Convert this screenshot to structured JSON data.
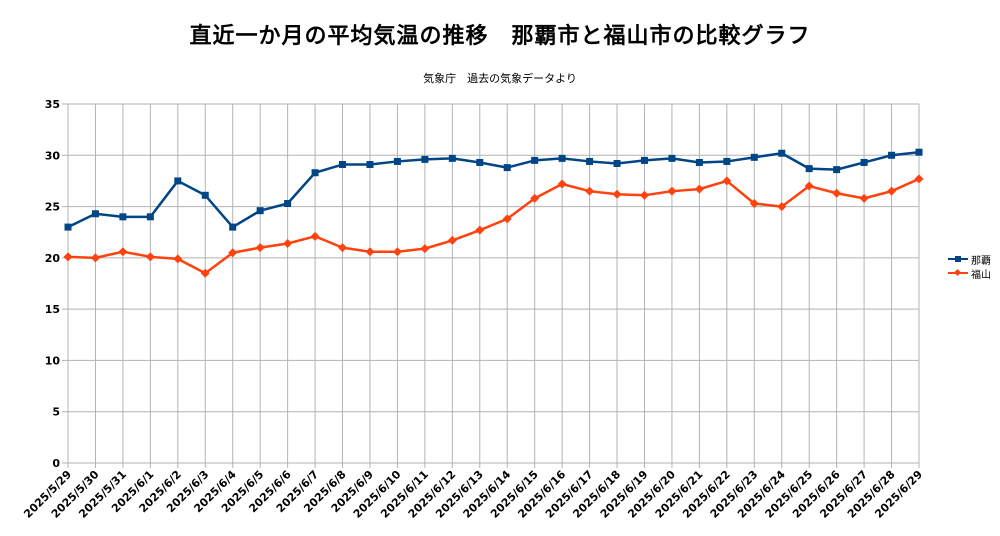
{
  "chart_data": {
    "type": "line",
    "title": "直近一か月の平均気温の推移　那覇市と福山市の比較グラフ",
    "subtitle": "気象庁　過去の気象データより",
    "xlabel": "",
    "ylabel": "",
    "ylim": [
      0,
      35
    ],
    "yticks": [
      0,
      5,
      10,
      15,
      20,
      25,
      30,
      35
    ],
    "grid": true,
    "legend_position": "right",
    "categories": [
      "2025/5/29",
      "2025/5/30",
      "2025/5/31",
      "2025/6/1",
      "2025/6/2",
      "2025/6/3",
      "2025/6/4",
      "2025/6/5",
      "2025/6/6",
      "2025/6/7",
      "2025/6/8",
      "2025/6/9",
      "2025/6/10",
      "2025/6/11",
      "2025/6/12",
      "2025/6/13",
      "2025/6/14",
      "2025/6/15",
      "2025/6/16",
      "2025/6/17",
      "2025/6/18",
      "2025/6/19",
      "2025/6/20",
      "2025/6/21",
      "2025/6/22",
      "2025/6/23",
      "2025/6/24",
      "2025/6/25",
      "2025/6/26",
      "2025/6/27",
      "2025/6/28",
      "2025/6/29"
    ],
    "series": [
      {
        "name": "那覇",
        "color": "#004586",
        "marker": "square",
        "values": [
          23.0,
          24.3,
          24.0,
          24.0,
          27.5,
          26.1,
          23.0,
          24.6,
          25.3,
          28.3,
          29.1,
          29.1,
          29.4,
          29.6,
          29.7,
          29.3,
          28.8,
          29.5,
          29.7,
          29.4,
          29.2,
          29.5,
          29.7,
          29.3,
          29.4,
          29.8,
          30.2,
          28.7,
          28.6,
          29.3,
          30.0,
          30.3
        ]
      },
      {
        "name": "福山",
        "color": "#ff420e",
        "marker": "diamond",
        "values": [
          20.1,
          20.0,
          20.6,
          20.1,
          19.9,
          18.5,
          20.5,
          21.0,
          21.4,
          22.1,
          21.0,
          20.6,
          20.6,
          20.9,
          21.7,
          22.7,
          23.8,
          25.8,
          27.2,
          26.5,
          26.2,
          26.1,
          26.5,
          26.7,
          27.5,
          25.3,
          25.0,
          27.0,
          26.3,
          25.8,
          26.5,
          27.7
        ]
      }
    ]
  }
}
